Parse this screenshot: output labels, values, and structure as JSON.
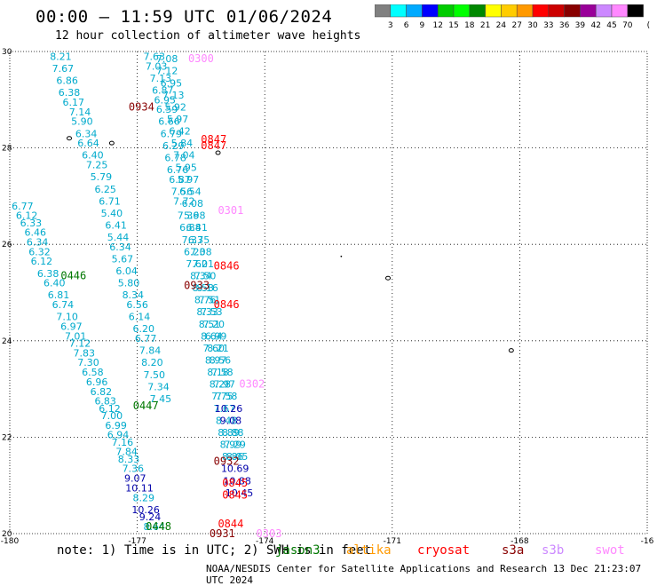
{
  "header": {
    "title": "00:00 – 11:59 UTC 01/06/2024",
    "subtitle": "12 hour collection of altimeter wave heights"
  },
  "colorbar": {
    "labels": [
      "3",
      "6",
      "9",
      "12",
      "15",
      "18",
      "21",
      "24",
      "27",
      "30",
      "33",
      "36",
      "39",
      "42",
      "45",
      "70"
    ],
    "unit": "(ft)",
    "colors": [
      "#808080",
      "#00ffff",
      "#00aaff",
      "#0000ff",
      "#00cc00",
      "#00ff00",
      "#008800",
      "#ffff00",
      "#ffcc00",
      "#ff9900",
      "#ff0000",
      "#cc0000",
      "#880000",
      "#990099",
      "#cc88ff",
      "#ff88ff",
      "#000000"
    ]
  },
  "footer": {
    "note_prefix": "note: 1) Time is in UTC; 2) SWH is in feet",
    "satellites": [
      {
        "name": "jason3",
        "color": "#007700"
      },
      {
        "name": "altika",
        "color": "#ff9900"
      },
      {
        "name": "cryosat",
        "color": "#ff0000"
      },
      {
        "name": "s3a",
        "color": "#880000"
      },
      {
        "name": "s3b",
        "color": "#cc88ff"
      },
      {
        "name": "swot",
        "color": "#ff88ff"
      }
    ],
    "credit": "NOAA/NESDIS Center for Satellite Applications and Research   13 Dec 21:23:07 UTC 2024"
  },
  "chart_data": {
    "type": "scatter",
    "xlim": [
      -180,
      -165
    ],
    "ylim": [
      20,
      30
    ],
    "x_ticks": [
      "-180",
      "-177",
      "-174",
      "-171",
      "-168",
      "-16"
    ],
    "y_ticks": [
      "20",
      "22",
      "24",
      "26",
      "28",
      "30"
    ],
    "grid": true,
    "track_colors": {
      "light": "#00aacc",
      "dark": "#0000aa"
    },
    "passes": [
      {
        "time": "0446",
        "x": -178.5,
        "y": 25.35,
        "color": "#007700"
      },
      {
        "time": "0447",
        "x": -176.8,
        "y": 22.65,
        "color": "#007700"
      },
      {
        "time": "0448",
        "x": -176.5,
        "y": 20.15,
        "color": "#007700"
      },
      {
        "time": "0934",
        "x": -176.9,
        "y": 28.85,
        "color": "#880000"
      },
      {
        "time": "0933",
        "x": -175.6,
        "y": 25.15,
        "color": "#880000"
      },
      {
        "time": "0932",
        "x": -174.9,
        "y": 21.5,
        "color": "#880000"
      },
      {
        "time": "0931",
        "x": -175.0,
        "y": 20.0,
        "color": "#880000"
      },
      {
        "time": "0847",
        "x": -175.2,
        "y": 28.18,
        "color": "#ff0000"
      },
      {
        "time": "0847",
        "x": -175.2,
        "y": 28.05,
        "color": "#ff0000"
      },
      {
        "time": "0846",
        "x": -174.9,
        "y": 25.55,
        "color": "#ff0000"
      },
      {
        "time": "0846",
        "x": -174.9,
        "y": 24.75,
        "color": "#ff0000"
      },
      {
        "time": "0845",
        "x": -174.7,
        "y": 21.05,
        "color": "#ff0000"
      },
      {
        "time": "0845",
        "x": -174.7,
        "y": 20.8,
        "color": "#ff0000"
      },
      {
        "time": "0844",
        "x": -174.8,
        "y": 20.2,
        "color": "#ff0000"
      },
      {
        "time": "0300",
        "x": -175.5,
        "y": 29.85,
        "color": "#ff88ff"
      },
      {
        "time": "0301",
        "x": -174.8,
        "y": 26.7,
        "color": "#ff88ff"
      },
      {
        "time": "0302",
        "x": -174.3,
        "y": 23.1,
        "color": "#ff88ff"
      },
      {
        "time": "0303",
        "x": -173.9,
        "y": 20.0,
        "color": "#ff88ff"
      }
    ],
    "tracks": [
      {
        "name": "jason3-west",
        "color": "light",
        "points": [
          {
            "x": -179.7,
            "y": 26.8,
            "v": "6.77"
          },
          {
            "x": -179.6,
            "y": 26.6,
            "v": "6.12"
          },
          {
            "x": -179.5,
            "y": 26.45,
            "v": "6.33"
          },
          {
            "x": -179.4,
            "y": 26.25,
            "v": "6.46"
          },
          {
            "x": -179.35,
            "y": 26.05,
            "v": "6.34"
          },
          {
            "x": -179.3,
            "y": 25.85,
            "v": "6.32"
          },
          {
            "x": -179.25,
            "y": 25.65,
            "v": "6.12"
          },
          {
            "x": -179.1,
            "y": 25.4,
            "v": "6.38"
          },
          {
            "x": -178.95,
            "y": 25.2,
            "v": "6.40"
          },
          {
            "x": -178.85,
            "y": 24.95,
            "v": "6.81"
          },
          {
            "x": -178.75,
            "y": 24.75,
            "v": "6.74"
          },
          {
            "x": -178.65,
            "y": 24.5,
            "v": "7.10"
          },
          {
            "x": -178.55,
            "y": 24.3,
            "v": "6.97"
          },
          {
            "x": -178.45,
            "y": 24.1,
            "v": "7.01"
          },
          {
            "x": -178.35,
            "y": 23.95,
            "v": "7.12"
          },
          {
            "x": -178.25,
            "y": 23.75,
            "v": "7.83"
          },
          {
            "x": -178.15,
            "y": 23.55,
            "v": "7.30"
          },
          {
            "x": -178.05,
            "y": 23.35,
            "v": "6.58"
          },
          {
            "x": -177.95,
            "y": 23.15,
            "v": "6.96"
          },
          {
            "x": -177.85,
            "y": 22.95,
            "v": "6.82"
          },
          {
            "x": -177.75,
            "y": 22.75,
            "v": "6.83"
          },
          {
            "x": -177.65,
            "y": 22.6,
            "v": "6.12"
          },
          {
            "x": -177.6,
            "y": 22.45,
            "v": "7.00"
          },
          {
            "x": -177.5,
            "y": 22.25,
            "v": "6.99"
          },
          {
            "x": -177.45,
            "y": 22.05,
            "v": "6.94"
          },
          {
            "x": -177.35,
            "y": 21.9,
            "v": "7.16"
          },
          {
            "x": -177.25,
            "y": 21.7,
            "v": "7.84"
          },
          {
            "x": -177.2,
            "y": 21.55,
            "v": "8.33"
          },
          {
            "x": -177.1,
            "y": 21.35,
            "v": "7.36"
          },
          {
            "x": -177.05,
            "y": 21.15,
            "v": "9.07",
            "c": "dark"
          },
          {
            "x": -176.95,
            "y": 20.95,
            "v": "10.11",
            "c": "dark"
          },
          {
            "x": -176.85,
            "y": 20.75,
            "v": "8.29"
          },
          {
            "x": -176.8,
            "y": 20.5,
            "v": "10.26",
            "c": "dark"
          },
          {
            "x": -176.7,
            "y": 20.35,
            "v": "9.24",
            "c": "dark"
          },
          {
            "x": -176.6,
            "y": 20.15,
            "v": "8.64"
          }
        ]
      },
      {
        "name": "s3a-west",
        "color": "light",
        "points": [
          {
            "x": -178.8,
            "y": 29.9,
            "v": "8.21"
          },
          {
            "x": -178.75,
            "y": 29.65,
            "v": "7.67"
          },
          {
            "x": -178.65,
            "y": 29.4,
            "v": "6.86"
          },
          {
            "x": -178.6,
            "y": 29.15,
            "v": "6.38"
          },
          {
            "x": -178.5,
            "y": 28.95,
            "v": "6.17"
          },
          {
            "x": -178.35,
            "y": 28.75,
            "v": "7.14"
          },
          {
            "x": -178.3,
            "y": 28.55,
            "v": "5.90"
          },
          {
            "x": -178.2,
            "y": 28.3,
            "v": "6.34"
          },
          {
            "x": -178.15,
            "y": 28.1,
            "v": "6.64"
          },
          {
            "x": -178.05,
            "y": 27.85,
            "v": "6.40"
          },
          {
            "x": -177.95,
            "y": 27.65,
            "v": "7.25"
          },
          {
            "x": -177.85,
            "y": 27.4,
            "v": "5.79"
          },
          {
            "x": -177.75,
            "y": 27.15,
            "v": "6.25"
          },
          {
            "x": -177.65,
            "y": 26.9,
            "v": "6.71"
          },
          {
            "x": -177.6,
            "y": 26.65,
            "v": "5.40"
          },
          {
            "x": -177.5,
            "y": 26.4,
            "v": "6.41"
          },
          {
            "x": -177.45,
            "y": 26.15,
            "v": "5.44"
          },
          {
            "x": -177.4,
            "y": 25.95,
            "v": "6.34"
          },
          {
            "x": -177.35,
            "y": 25.7,
            "v": "5.67"
          },
          {
            "x": -177.25,
            "y": 25.45,
            "v": "6.04"
          },
          {
            "x": -177.2,
            "y": 25.2,
            "v": "5.80"
          },
          {
            "x": -177.1,
            "y": 24.95,
            "v": "8.34"
          },
          {
            "x": -177.0,
            "y": 24.75,
            "v": "6.56"
          },
          {
            "x": -176.95,
            "y": 24.5,
            "v": "6.14"
          },
          {
            "x": -176.85,
            "y": 24.25,
            "v": "6.20"
          },
          {
            "x": -176.8,
            "y": 24.05,
            "v": "6.77"
          },
          {
            "x": -176.7,
            "y": 23.8,
            "v": "7.84"
          },
          {
            "x": -176.65,
            "y": 23.55,
            "v": "8.20"
          },
          {
            "x": -176.6,
            "y": 23.3,
            "v": "7.50"
          },
          {
            "x": -176.5,
            "y": 23.05,
            "v": "7.34"
          },
          {
            "x": -176.45,
            "y": 22.8,
            "v": "7.45"
          }
        ]
      },
      {
        "name": "cryosat-mid",
        "color": "light",
        "points": [
          {
            "x": -176.6,
            "y": 29.9,
            "v": "7.63"
          },
          {
            "x": -176.55,
            "y": 29.7,
            "v": "7.03"
          },
          {
            "x": -176.45,
            "y": 29.45,
            "v": "7.13"
          },
          {
            "x": -176.4,
            "y": 29.2,
            "v": "6.87"
          },
          {
            "x": -176.35,
            "y": 29.0,
            "v": "6.95"
          },
          {
            "x": -176.3,
            "y": 28.8,
            "v": "6.59"
          },
          {
            "x": -176.25,
            "y": 28.55,
            "v": "6.66"
          },
          {
            "x": -176.2,
            "y": 28.3,
            "v": "6.79"
          },
          {
            "x": -176.15,
            "y": 28.05,
            "v": "6.29"
          },
          {
            "x": -176.1,
            "y": 27.8,
            "v": "6.78"
          },
          {
            "x": -176.05,
            "y": 27.55,
            "v": "6.76"
          },
          {
            "x": -176.0,
            "y": 27.35,
            "v": "6.87"
          },
          {
            "x": -175.95,
            "y": 27.1,
            "v": "7.56"
          },
          {
            "x": -175.9,
            "y": 26.9,
            "v": "7.72"
          },
          {
            "x": -175.8,
            "y": 26.6,
            "v": "7.36"
          },
          {
            "x": -175.75,
            "y": 26.35,
            "v": "6.88"
          },
          {
            "x": -175.7,
            "y": 26.1,
            "v": "7.33"
          },
          {
            "x": -175.65,
            "y": 25.85,
            "v": "6.23"
          },
          {
            "x": -175.6,
            "y": 25.6,
            "v": "7.62"
          },
          {
            "x": -175.5,
            "y": 25.35,
            "v": "8.34"
          },
          {
            "x": -175.45,
            "y": 25.1,
            "v": "8.53"
          },
          {
            "x": -175.4,
            "y": 24.85,
            "v": "8.76"
          },
          {
            "x": -175.35,
            "y": 24.6,
            "v": "8.33"
          },
          {
            "x": -175.3,
            "y": 24.35,
            "v": "8.51"
          },
          {
            "x": -175.25,
            "y": 24.1,
            "v": "8.64"
          },
          {
            "x": -175.2,
            "y": 23.85,
            "v": "7.60"
          },
          {
            "x": -175.15,
            "y": 23.6,
            "v": "8.97"
          },
          {
            "x": -175.1,
            "y": 23.35,
            "v": "8.18"
          },
          {
            "x": -175.05,
            "y": 23.1,
            "v": "8.28"
          },
          {
            "x": -175.0,
            "y": 22.85,
            "v": "7.75"
          },
          {
            "x": -174.95,
            "y": 22.6,
            "v": "7.67"
          },
          {
            "x": -174.9,
            "y": 22.35,
            "v": "8.48"
          },
          {
            "x": -174.85,
            "y": 22.1,
            "v": "8.89"
          },
          {
            "x": -174.8,
            "y": 21.85,
            "v": "8.99"
          },
          {
            "x": -174.75,
            "y": 21.6,
            "v": "8.86"
          },
          {
            "x": -174.7,
            "y": 21.35,
            "v": "10.69",
            "c": "dark"
          },
          {
            "x": -174.65,
            "y": 21.1,
            "v": "10.88",
            "c": "dark"
          },
          {
            "x": -174.6,
            "y": 20.85,
            "v": "10.45",
            "c": "dark"
          }
        ]
      },
      {
        "name": "s3b-mid",
        "color": "light",
        "points": [
          {
            "x": -176.3,
            "y": 29.85,
            "v": "7.08"
          },
          {
            "x": -176.3,
            "y": 29.6,
            "v": "7.12"
          },
          {
            "x": -176.2,
            "y": 29.35,
            "v": "6.95"
          },
          {
            "x": -176.15,
            "y": 29.1,
            "v": "7.13"
          },
          {
            "x": -176.1,
            "y": 28.85,
            "v": "5.92"
          },
          {
            "x": -176.05,
            "y": 28.6,
            "v": "5.97"
          },
          {
            "x": -176.0,
            "y": 28.35,
            "v": "6.42"
          },
          {
            "x": -175.95,
            "y": 28.1,
            "v": "5.84"
          },
          {
            "x": -175.9,
            "y": 27.85,
            "v": "7.04"
          },
          {
            "x": -175.85,
            "y": 27.6,
            "v": "5.95"
          },
          {
            "x": -175.8,
            "y": 27.35,
            "v": "5.97"
          },
          {
            "x": -175.75,
            "y": 27.1,
            "v": "6.54"
          },
          {
            "x": -175.7,
            "y": 26.85,
            "v": "6.08"
          },
          {
            "x": -175.65,
            "y": 26.6,
            "v": "5.98"
          },
          {
            "x": -175.6,
            "y": 26.35,
            "v": "6.41"
          },
          {
            "x": -175.55,
            "y": 26.1,
            "v": "6.75"
          },
          {
            "x": -175.5,
            "y": 25.85,
            "v": "7.08"
          },
          {
            "x": -175.45,
            "y": 25.6,
            "v": "7.01"
          },
          {
            "x": -175.4,
            "y": 25.35,
            "v": "7.50"
          },
          {
            "x": -175.35,
            "y": 25.1,
            "v": "8.16"
          },
          {
            "x": -175.3,
            "y": 24.85,
            "v": "7.51"
          },
          {
            "x": -175.25,
            "y": 24.6,
            "v": "7.53"
          },
          {
            "x": -175.2,
            "y": 24.35,
            "v": "7.20"
          },
          {
            "x": -175.15,
            "y": 24.1,
            "v": "6.99"
          },
          {
            "x": -175.1,
            "y": 23.85,
            "v": "8.21"
          },
          {
            "x": -175.05,
            "y": 23.6,
            "v": "8.56"
          },
          {
            "x": -175.0,
            "y": 23.35,
            "v": "7.58"
          },
          {
            "x": -174.95,
            "y": 23.1,
            "v": "7.97"
          },
          {
            "x": -174.9,
            "y": 22.85,
            "v": "7.58"
          },
          {
            "x": -174.85,
            "y": 22.6,
            "v": "10.26",
            "c": "dark"
          },
          {
            "x": -174.8,
            "y": 22.35,
            "v": "9.08",
            "c": "dark"
          },
          {
            "x": -174.75,
            "y": 22.1,
            "v": "8.88"
          },
          {
            "x": -174.7,
            "y": 21.85,
            "v": "7.29"
          },
          {
            "x": -174.65,
            "y": 21.6,
            "v": "8.05"
          }
        ]
      }
    ]
  }
}
